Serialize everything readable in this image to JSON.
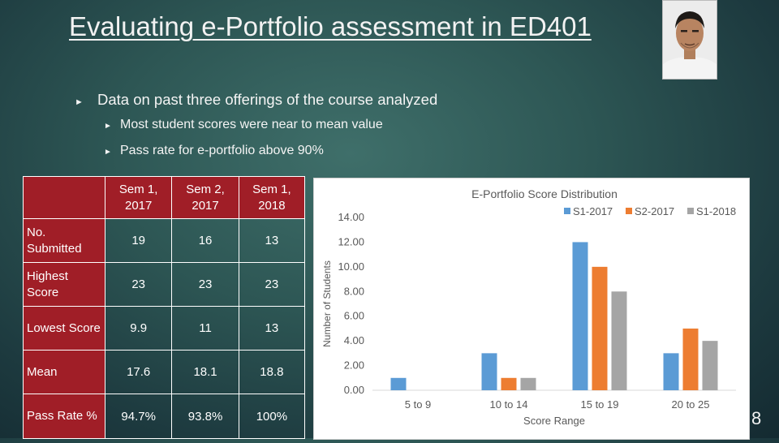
{
  "slide": {
    "title": "Evaluating e-Portfolio assessment in ED401",
    "number": "8"
  },
  "bullets": [
    "Data on past three offerings of the course analyzed",
    "Most student scores were near to mean value",
    "Pass rate for e-portfolio above 90%"
  ],
  "table": {
    "columns": [
      "Sem 1, 2017",
      "Sem 2, 2017",
      "Sem 1, 2018"
    ],
    "rows": [
      {
        "label": "No. Submitted",
        "values": [
          "19",
          "16",
          "13"
        ]
      },
      {
        "label": "Highest Score",
        "values": [
          "23",
          "23",
          "23"
        ]
      },
      {
        "label": "Lowest Score",
        "values": [
          "9.9",
          "11",
          "13"
        ]
      },
      {
        "label": "Mean",
        "values": [
          "17.6",
          "18.1",
          "18.8"
        ]
      },
      {
        "label": "Pass Rate %",
        "values": [
          "94.7%",
          "93.8%",
          "100%"
        ]
      }
    ]
  },
  "chart_data": {
    "type": "bar",
    "title": "E-Portfolio Score Distribution",
    "xlabel": "Score Range",
    "ylabel": "Number of Students",
    "categories": [
      "5 to 9",
      "10 to 14",
      "15 to 19",
      "20 to 25"
    ],
    "series": [
      {
        "name": "S1-2017",
        "color": "#5b9bd5",
        "values": [
          1,
          3,
          12,
          3
        ]
      },
      {
        "name": "S2-2017",
        "color": "#ed7d31",
        "values": [
          0,
          1,
          10,
          5
        ]
      },
      {
        "name": "S1-2018",
        "color": "#a5a5a5",
        "values": [
          0,
          1,
          8,
          4
        ]
      }
    ],
    "yticks": [
      "0.00",
      "2.00",
      "4.00",
      "6.00",
      "8.00",
      "10.00",
      "12.00",
      "14.00"
    ],
    "ylim": [
      0,
      14
    ],
    "legend": "top-right",
    "grid": false
  }
}
